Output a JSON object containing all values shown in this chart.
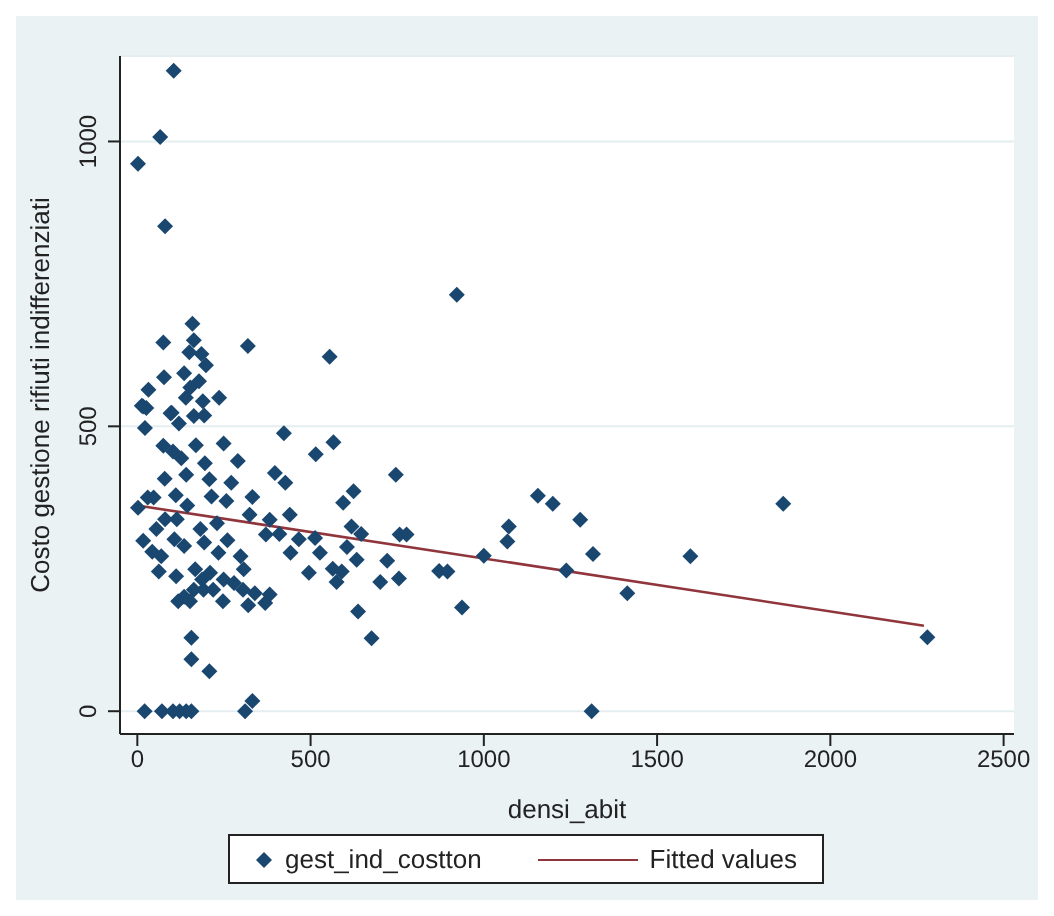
{
  "chart_data": {
    "type": "scatter",
    "xlabel": "densi_abit",
    "ylabel": "Costo gestione rifiuti indifferenziati",
    "xlim": [
      -50,
      2530
    ],
    "ylim": [
      -40,
      1150
    ],
    "xticks": [
      0,
      500,
      1000,
      1500,
      2000,
      2500
    ],
    "yticks": [
      0,
      500,
      1000
    ],
    "grid": "y",
    "legend": "bottom",
    "marker": "diamond",
    "series": [
      {
        "name": "gest_ind_costton",
        "color": "#1a476f",
        "x": [
          105,
          66,
          2,
          80,
          922,
          159,
          75,
          163,
          319,
          555,
          150,
          185,
          198,
          77,
          135,
          32,
          153,
          178,
          236,
          189,
          140,
          13,
          26,
          96,
          120,
          163,
          193,
          21,
          71,
          103,
          122,
          141,
          156,
          311,
          1311,
          332,
          208,
          156,
          156,
          676,
          937,
          637,
          746,
          515,
          566,
          423,
          1156,
          1199,
          1278,
          1072,
          1068,
          1000,
          1238,
          871,
          895,
          755,
          721,
          701,
          757,
          777,
          646,
          618,
          624,
          594,
          605,
          633,
          564,
          590,
          575,
          495,
          527,
          513,
          466,
          440,
          427,
          397,
          410,
          442,
          382,
          371,
          332,
          324,
          382,
          320,
          369,
          305,
          339,
          298,
          307,
          2,
          30,
          47,
          17,
          43,
          62,
          22,
          17,
          99,
          75,
          103,
          127,
          169,
          249,
          195,
          290,
          79,
          141,
          208,
          271,
          111,
          144,
          214,
          257,
          80,
          114,
          182,
          230,
          260,
          55,
          107,
          135,
          193,
          234,
          69,
          112,
          167,
          210,
          249,
          135,
          163,
          191,
          219,
          118,
          152,
          247,
          187,
          279,
          1315,
          1414,
          1596,
          1864,
          2280
        ],
        "values": [
          1124,
          1008,
          961,
          851,
          731,
          680,
          647,
          651,
          641,
          622,
          630,
          627,
          607,
          586,
          593,
          564,
          568,
          579,
          550,
          544,
          550,
          536,
          532,
          523,
          505,
          518,
          519,
          0,
          0,
          0,
          0,
          0,
          0,
          0,
          0,
          18,
          70,
          91,
          129,
          128,
          182,
          175,
          415,
          451,
          472,
          488,
          378,
          364,
          336,
          324,
          298,
          273,
          247,
          246,
          245,
          233,
          264,
          227,
          310,
          310,
          311,
          324,
          386,
          366,
          288,
          266,
          250,
          245,
          227,
          243,
          278,
          304,
          302,
          345,
          401,
          418,
          311,
          278,
          336,
          310,
          376,
          345,
          205,
          186,
          190,
          213,
          207,
          272,
          249,
          357,
          375,
          375,
          299,
          280,
          245,
          497,
          535,
          524,
          466,
          456,
          444,
          467,
          470,
          435,
          439,
          408,
          415,
          407,
          401,
          379,
          361,
          377,
          369,
          337,
          337,
          320,
          330,
          300,
          320,
          302,
          290,
          296,
          278,
          272,
          237,
          249,
          243,
          231,
          201,
          213,
          213,
          213,
          193,
          193,
          193,
          231,
          225,
          276,
          207,
          272,
          364,
          130
        ]
      },
      {
        "name": "Fitted values",
        "type": "line",
        "color": "#90353b",
        "x": [
          0,
          2270
        ],
        "values": [
          361,
          150
        ],
        "marker": "none",
        "line_style": "solid"
      }
    ]
  }
}
